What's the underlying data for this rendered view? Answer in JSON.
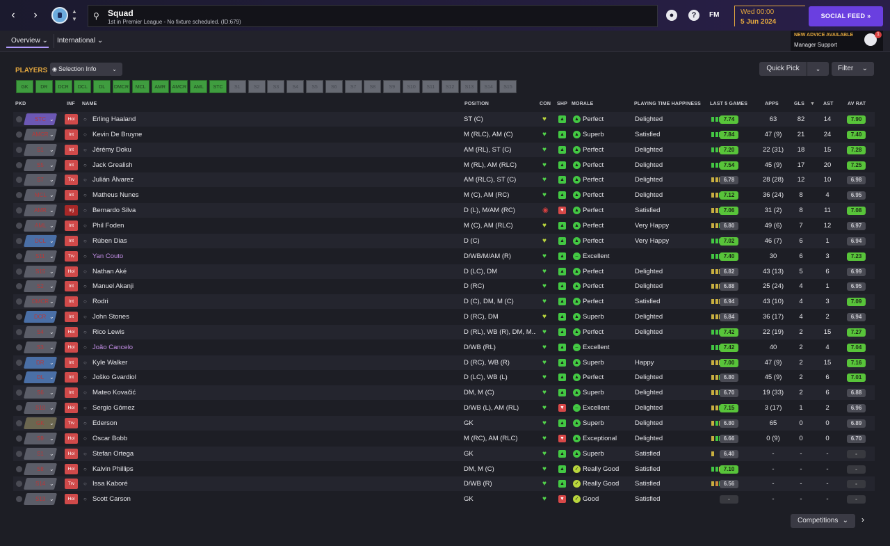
{
  "header": {
    "title": "Squad",
    "subtitle": "1st in Premier League - No fixture scheduled. (ID:679)",
    "fm_logo": "FM",
    "date_line1": "Wed 00:00",
    "date_line2": "5 Jun 2024",
    "social_feed_label": "SOCIAL FEED",
    "help_icon_label": "?",
    "back_icon": "chevron-left-icon",
    "forward_icon": "chevron-right-icon"
  },
  "subnav": {
    "tabs": [
      {
        "label": "Overview"
      },
      {
        "label": "International"
      }
    ]
  },
  "advice": {
    "headline": "NEW ADVICE AVAILABLE",
    "source": "Manager Support",
    "count": "1"
  },
  "players_panel": {
    "title": "PLAYERS",
    "selection_info_label": "Selection Info",
    "quick_pick_label": "Quick Pick",
    "filter_label": "Filter",
    "position_chips": [
      {
        "label": "GK",
        "active": true
      },
      {
        "label": "DR",
        "active": true
      },
      {
        "label": "DCR",
        "active": true
      },
      {
        "label": "DCL",
        "active": true
      },
      {
        "label": "DL",
        "active": true
      },
      {
        "label": "DMCR",
        "active": true
      },
      {
        "label": "MCL",
        "active": true
      },
      {
        "label": "AMR",
        "active": true
      },
      {
        "label": "AMCR",
        "active": true
      },
      {
        "label": "AML",
        "active": true
      },
      {
        "label": "STC",
        "active": true
      },
      {
        "label": "S1",
        "active": false
      },
      {
        "label": "S2",
        "active": false
      },
      {
        "label": "S3",
        "active": false
      },
      {
        "label": "S4",
        "active": false
      },
      {
        "label": "S5",
        "active": false
      },
      {
        "label": "S6",
        "active": false
      },
      {
        "label": "S7",
        "active": false
      },
      {
        "label": "S8",
        "active": false
      },
      {
        "label": "S9",
        "active": false
      },
      {
        "label": "S10",
        "active": false
      },
      {
        "label": "S11",
        "active": false
      },
      {
        "label": "S12",
        "active": false
      },
      {
        "label": "S13",
        "active": false
      },
      {
        "label": "S14",
        "active": false
      },
      {
        "label": "S15",
        "active": false
      }
    ]
  },
  "table": {
    "columns": {
      "pkd": "PKD",
      "inf": "INF",
      "name": "NAME",
      "position": "POSITION",
      "con": "CON",
      "shp": "SHP",
      "morale": "MORALE",
      "happiness": "PLAYING TIME HAPPINESS",
      "last5": "LAST 5 GAMES",
      "apps": "APPS",
      "gls": "GLS",
      "ast": "AST",
      "avrat": "AV RAT"
    },
    "rows": [
      {
        "pkd": "STC",
        "inf": "Hol",
        "name": "Erling Haaland",
        "position": "ST (C)",
        "morale": "Perfect",
        "happiness": "Delighted",
        "last5": "7.74",
        "apps": "63",
        "gls": "82",
        "ast": "14",
        "avrat": "7.90"
      },
      {
        "pkd": "AMCR",
        "inf": "Int",
        "name": "Kevin De Bruyne",
        "position": "M (RLC), AM (C)",
        "morale": "Superb",
        "happiness": "Satisfied",
        "last5": "7.84",
        "apps": "47 (9)",
        "gls": "21",
        "ast": "24",
        "avrat": "7.40"
      },
      {
        "pkd": "S1",
        "inf": "Int",
        "name": "Jérémy Doku",
        "position": "AM (RL), ST (C)",
        "morale": "Perfect",
        "happiness": "Delighted",
        "last5": "7.20",
        "apps": "22 (31)",
        "gls": "18",
        "ast": "15",
        "avrat": "7.28"
      },
      {
        "pkd": "S5",
        "inf": "Int",
        "name": "Jack Grealish",
        "position": "M (RL), AM (RLC)",
        "morale": "Perfect",
        "happiness": "Delighted",
        "last5": "7.54",
        "apps": "45 (9)",
        "gls": "17",
        "ast": "20",
        "avrat": "7.25"
      },
      {
        "pkd": "S7",
        "inf": "Trv",
        "name": "Julián Álvarez",
        "position": "AM (RLC), ST (C)",
        "morale": "Perfect",
        "happiness": "Delighted",
        "last5": "6.78",
        "apps": "28 (28)",
        "gls": "12",
        "ast": "10",
        "avrat": "6.98"
      },
      {
        "pkd": "MCL",
        "inf": "Int",
        "name": "Matheus Nunes",
        "position": "M (C), AM (RC)",
        "morale": "Perfect",
        "happiness": "Delighted",
        "last5": "7.12",
        "apps": "36 (24)",
        "gls": "8",
        "ast": "4",
        "avrat": "6.95"
      },
      {
        "pkd": "AMR",
        "inf": "Inj",
        "name": "Bernardo Silva",
        "position": "D (L), M/AM (RC)",
        "morale": "Perfect",
        "happiness": "Satisfied",
        "last5": "7.06",
        "apps": "31 (2)",
        "gls": "8",
        "ast": "11",
        "avrat": "7.08"
      },
      {
        "pkd": "AML",
        "inf": "Int",
        "name": "Phil Foden",
        "position": "M (C), AM (RLC)",
        "morale": "Perfect",
        "happiness": "Very Happy",
        "last5": "6.80",
        "apps": "49 (6)",
        "gls": "7",
        "ast": "12",
        "avrat": "6.97"
      },
      {
        "pkd": "DCL",
        "inf": "Int",
        "name": "Rúben Dias",
        "position": "D (C)",
        "morale": "Perfect",
        "happiness": "Very Happy",
        "last5": "7.02",
        "apps": "46 (7)",
        "gls": "6",
        "ast": "1",
        "avrat": "6.94"
      },
      {
        "pkd": "S11",
        "inf": "Trv",
        "name": "Yan Couto",
        "position": "D/WB/M/AM (R)",
        "morale": "Excellent",
        "happiness": "",
        "last5": "7.40",
        "apps": "30",
        "gls": "6",
        "ast": "3",
        "avrat": "7.23"
      },
      {
        "pkd": "S15",
        "inf": "Hol",
        "name": "Nathan Aké",
        "position": "D (LC), DM",
        "morale": "Perfect",
        "happiness": "Delighted",
        "last5": "6.82",
        "apps": "43 (13)",
        "gls": "5",
        "ast": "6",
        "avrat": "6.99"
      },
      {
        "pkd": "S2",
        "inf": "Int",
        "name": "Manuel Akanji",
        "position": "D (RC)",
        "morale": "Perfect",
        "happiness": "Delighted",
        "last5": "6.88",
        "apps": "25 (24)",
        "gls": "4",
        "ast": "1",
        "avrat": "6.95"
      },
      {
        "pkd": "DMCR",
        "inf": "Int",
        "name": "Rodri",
        "position": "D (C), DM, M (C)",
        "morale": "Perfect",
        "happiness": "Satisfied",
        "last5": "6.94",
        "apps": "43 (10)",
        "gls": "4",
        "ast": "3",
        "avrat": "7.09"
      },
      {
        "pkd": "DCR",
        "inf": "Int",
        "name": "John Stones",
        "position": "D (RC), DM",
        "morale": "Superb",
        "happiness": "Delighted",
        "last5": "6.84",
        "apps": "36 (17)",
        "gls": "4",
        "ast": "2",
        "avrat": "6.94"
      },
      {
        "pkd": "S4",
        "inf": "Hol",
        "name": "Rico Lewis",
        "position": "D (RL), WB (R), DM, M...",
        "morale": "Perfect",
        "happiness": "Delighted",
        "last5": "7.42",
        "apps": "22 (19)",
        "gls": "2",
        "ast": "15",
        "avrat": "7.27"
      },
      {
        "pkd": "S3",
        "inf": "Hol",
        "name": "João Cancelo",
        "position": "D/WB (RL)",
        "morale": "Excellent",
        "happiness": "",
        "last5": "7.42",
        "apps": "40",
        "gls": "2",
        "ast": "4",
        "avrat": "7.04"
      },
      {
        "pkd": "DR",
        "inf": "Int",
        "name": "Kyle Walker",
        "position": "D (RC), WB (R)",
        "morale": "Superb",
        "happiness": "Happy",
        "last5": "7.00",
        "apps": "47 (9)",
        "gls": "2",
        "ast": "15",
        "avrat": "7.16"
      },
      {
        "pkd": "DL",
        "inf": "Int",
        "name": "Joško Gvardiol",
        "position": "D (LC), WB (L)",
        "morale": "Perfect",
        "happiness": "Delighted",
        "last5": "6.80",
        "apps": "45 (9)",
        "gls": "2",
        "ast": "6",
        "avrat": "7.01"
      },
      {
        "pkd": "S6",
        "inf": "Int",
        "name": "Mateo Kovačić",
        "position": "DM, M (C)",
        "morale": "Superb",
        "happiness": "Delighted",
        "last5": "6.70",
        "apps": "19 (33)",
        "gls": "2",
        "ast": "6",
        "avrat": "6.88"
      },
      {
        "pkd": "S10",
        "inf": "Hol",
        "name": "Sergio Gómez",
        "position": "D/WB (L), AM (RL)",
        "morale": "Excellent",
        "happiness": "Delighted",
        "last5": "7.15",
        "apps": "3 (17)",
        "gls": "1",
        "ast": "2",
        "avrat": "6.96"
      },
      {
        "pkd": "GK",
        "inf": "Trv",
        "name": "Ederson",
        "position": "GK",
        "morale": "Superb",
        "happiness": "Delighted",
        "last5": "6.80",
        "apps": "65",
        "gls": "0",
        "ast": "0",
        "avrat": "6.89"
      },
      {
        "pkd": "S9",
        "inf": "Hol",
        "name": "Oscar Bobb",
        "position": "M (RC), AM (RLC)",
        "morale": "Exceptional",
        "happiness": "Delighted",
        "last5": "6.66",
        "apps": "0 (9)",
        "gls": "0",
        "ast": "0",
        "avrat": "6.70"
      },
      {
        "pkd": "S1",
        "inf": "Hol",
        "name": "Stefan Ortega",
        "position": "GK",
        "morale": "Superb",
        "happiness": "Satisfied",
        "last5": "6.40",
        "apps": "-",
        "gls": "-",
        "ast": "-",
        "avrat": "-"
      },
      {
        "pkd": "S8",
        "inf": "Hol",
        "name": "Kalvin Phillips",
        "position": "DM, M (C)",
        "morale": "Really Good",
        "happiness": "Satisfied",
        "last5": "7.10",
        "apps": "-",
        "gls": "-",
        "ast": "-",
        "avrat": "-"
      },
      {
        "pkd": "S14",
        "inf": "Trv",
        "name": "Issa Kaboré",
        "position": "D/WB (R)",
        "morale": "Really Good",
        "happiness": "Satisfied",
        "last5": "6.56",
        "apps": "-",
        "gls": "-",
        "ast": "-",
        "avrat": "-"
      },
      {
        "pkd": "S13",
        "inf": "Hol",
        "name": "Scott Carson",
        "position": "GK",
        "morale": "Good",
        "happiness": "Satisfied",
        "last5": "-",
        "apps": "-",
        "gls": "-",
        "ast": "-",
        "avrat": "-"
      }
    ]
  },
  "footer": {
    "competitions_label": "Competitions"
  },
  "colors": {
    "accent_orange": "#e3a73f",
    "social_purple": "#6a3fe0",
    "rating_green": "#58c43a",
    "chip_green": "#3f9d3f",
    "injury_red": "#d84040"
  }
}
